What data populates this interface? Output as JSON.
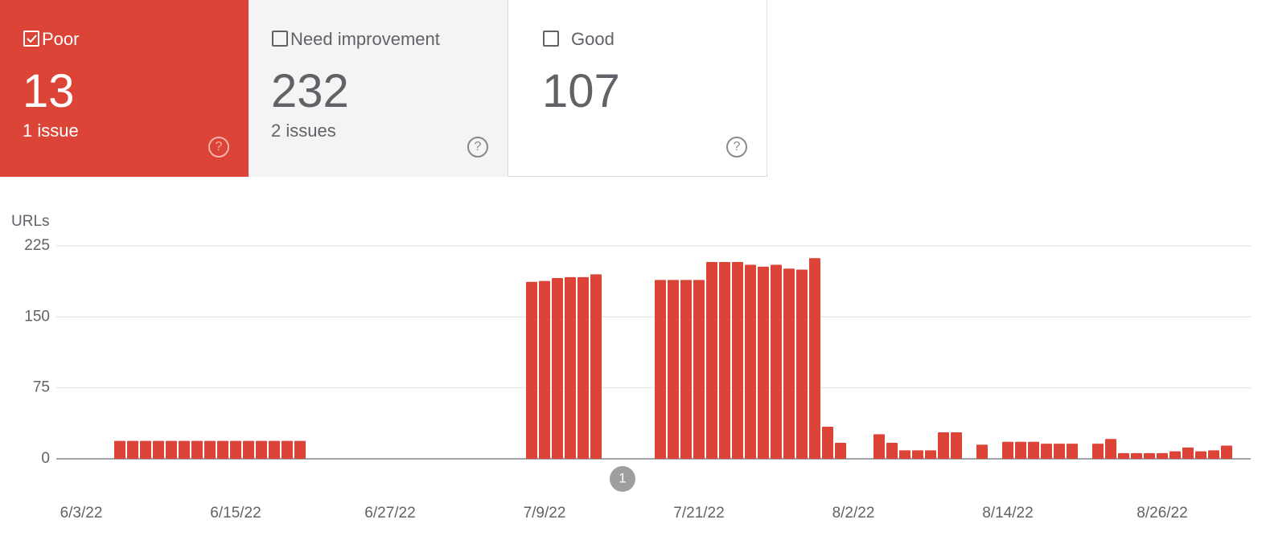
{
  "cards": [
    {
      "label": "Poor",
      "value": 13,
      "issues": "1 issue",
      "checked": true
    },
    {
      "label": "Need improvement",
      "value": 232,
      "issues": "2 issues",
      "checked": false
    },
    {
      "label": "Good",
      "value": 107,
      "checked": false
    }
  ],
  "annotations": [
    "1"
  ],
  "chart_data": {
    "type": "bar",
    "y_label": "URLs",
    "color": "#db4437",
    "categories": [
      "6/3/22",
      null,
      null,
      null,
      null,
      null,
      null,
      null,
      null,
      null,
      null,
      null,
      "6/15/22",
      null,
      null,
      null,
      null,
      null,
      null,
      null,
      null,
      null,
      null,
      null,
      "6/27/22",
      null,
      null,
      null,
      null,
      null,
      null,
      null,
      null,
      null,
      null,
      null,
      "7/9/22",
      null,
      null,
      null,
      null,
      null,
      null,
      null,
      null,
      null,
      null,
      null,
      "7/21/22",
      null,
      null,
      null,
      null,
      null,
      null,
      null,
      null,
      null,
      null,
      null,
      "8/2/22",
      null,
      null,
      null,
      null,
      null,
      null,
      null,
      null,
      null,
      null,
      null,
      "8/14/22",
      null,
      null,
      null,
      null,
      null,
      null,
      null,
      null,
      null,
      null,
      null,
      "8/26/22",
      null,
      null,
      null,
      null,
      null
    ],
    "values": [
      null,
      null,
      null,
      19,
      19,
      19,
      19,
      19,
      19,
      19,
      19,
      19,
      19,
      19,
      19,
      19,
      19,
      19,
      null,
      null,
      null,
      null,
      null,
      null,
      null,
      null,
      null,
      null,
      null,
      null,
      null,
      null,
      null,
      null,
      null,
      187,
      188,
      191,
      192,
      192,
      195,
      null,
      null,
      null,
      null,
      189,
      189,
      189,
      189,
      208,
      208,
      208,
      205,
      203,
      205,
      201,
      200,
      212,
      34,
      17,
      null,
      null,
      26,
      17,
      9,
      9,
      9,
      28,
      28,
      null,
      15,
      null,
      18,
      18,
      18,
      16,
      16,
      16,
      null,
      16,
      21,
      6,
      6,
      6,
      6,
      8,
      12,
      8,
      9,
      14
    ],
    "ylim": [
      0,
      225
    ],
    "yticks": [
      0,
      75,
      150,
      225
    ],
    "grid": true
  }
}
